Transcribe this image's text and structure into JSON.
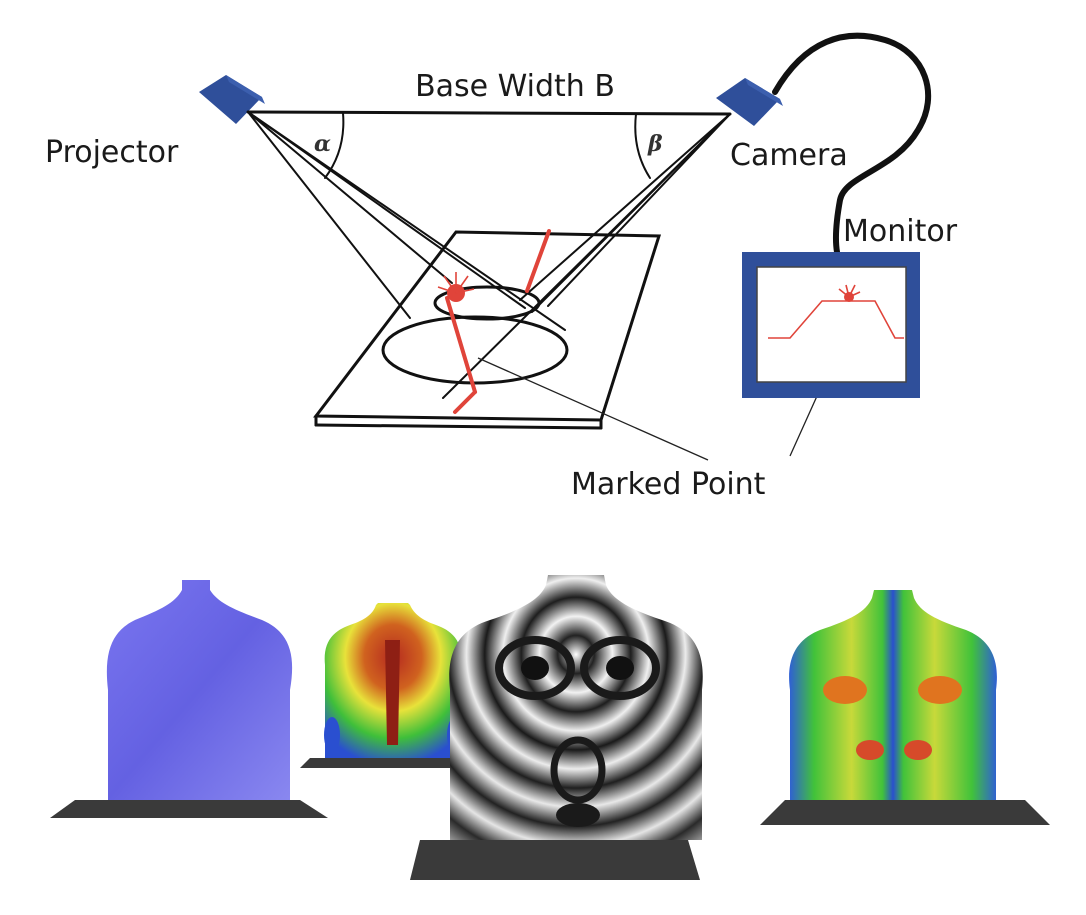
{
  "labels": {
    "base_width": "Base Width B",
    "projector": "Projector",
    "camera": "Camera",
    "monitor": "Monitor",
    "marked_point": "Marked Point",
    "alpha": "α",
    "beta": "β"
  },
  "colors": {
    "device_blue": "#2f4f9a",
    "ray_red": "#e0443a",
    "line_black": "#111111",
    "torso_blue": "#6a66e6",
    "heatmap_green": "#3fbf3a",
    "heatmap_red": "#b52a1f",
    "heatmap_yellow": "#e8e23a",
    "heatmap_blue": "#2a4fd0",
    "base_plate": "#3a3a3a"
  },
  "torsos": [
    {
      "style": "uniform-blue"
    },
    {
      "style": "heatmap-red-green"
    },
    {
      "style": "moire-bw"
    },
    {
      "style": "heatmap-green"
    }
  ]
}
